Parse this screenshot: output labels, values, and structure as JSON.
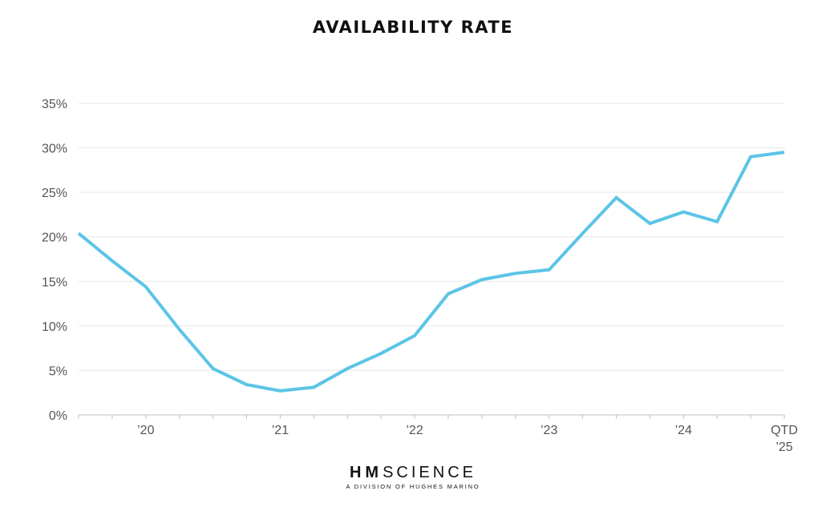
{
  "chart_data": {
    "type": "line",
    "title": "AVAILABILITY RATE",
    "xlabel": "",
    "ylabel": "",
    "ylim": [
      0,
      35
    ],
    "yticks": [
      "0%",
      "5%",
      "10%",
      "15%",
      "20%",
      "25%",
      "30%",
      "35%"
    ],
    "ytick_values": [
      0,
      5,
      10,
      15,
      20,
      25,
      30,
      35
    ],
    "xtick_labels": [
      {
        "lines": [
          "’20"
        ],
        "at": "2020 Q1"
      },
      {
        "lines": [
          "’21"
        ],
        "at": "2021 Q1"
      },
      {
        "lines": [
          "’22"
        ],
        "at": "2022 Q1"
      },
      {
        "lines": [
          "’23"
        ],
        "at": "2023 Q1"
      },
      {
        "lines": [
          "’24"
        ],
        "at": "2024 Q1"
      },
      {
        "lines": [
          "QTD",
          "’25"
        ],
        "at": "2025 QTD"
      }
    ],
    "x": [
      "2019 Q3",
      "2019 Q4",
      "2020 Q1",
      "2020 Q2",
      "2020 Q3",
      "2020 Q4",
      "2021 Q1",
      "2021 Q2",
      "2021 Q3",
      "2021 Q4",
      "2022 Q1",
      "2022 Q2",
      "2022 Q3",
      "2022 Q4",
      "2023 Q1",
      "2023 Q2",
      "2023 Q3",
      "2023 Q4",
      "2024 Q1",
      "2024 Q2",
      "2024 Q3",
      "2025 QTD"
    ],
    "series": [
      {
        "values": [
          20.4,
          17.3,
          14.4,
          9.6,
          5.2,
          3.4,
          2.7,
          3.1,
          5.2,
          6.9,
          8.9,
          13.6,
          15.2,
          15.9,
          16.3,
          20.4,
          24.4,
          21.5,
          22.8,
          21.7,
          29.0,
          29.5
        ],
        "color": "#5bc4e6"
      }
    ],
    "grid": true,
    "legend": "none"
  },
  "footer": {
    "logo_hm": "HM",
    "logo_science": "SCIENCE",
    "logo_sub": "A DIVISION OF HUGHES MARINO"
  }
}
